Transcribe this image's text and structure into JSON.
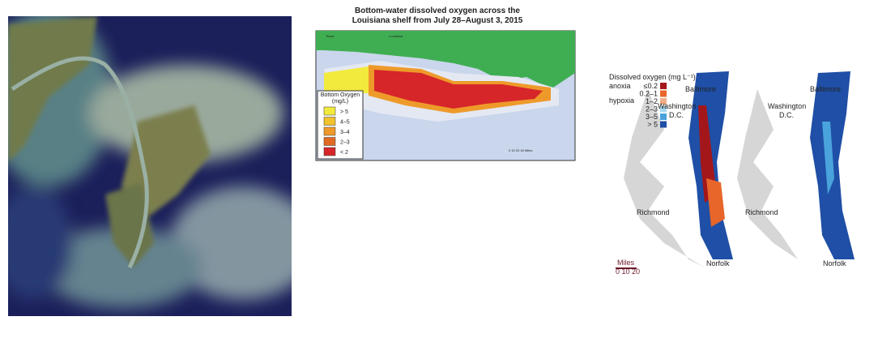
{
  "louisiana_map": {
    "title_lines": [
      "Bottom-water dissolved oxygen across the",
      "Louisiana shelf from July 28–August 3, 2015"
    ],
    "place_labels": [
      "Texas",
      "Louisiana"
    ],
    "scale_label": "0  10  20       40 Miles",
    "legend": {
      "title_lines": [
        "Bottom Oxygen",
        "(mg/L)"
      ],
      "items": [
        {
          "label": "> 5",
          "color": "#f2ea3c"
        },
        {
          "label": "4–5",
          "color": "#f2c12e"
        },
        {
          "label": "3–4",
          "color": "#ee9a2a"
        },
        {
          "label": "2–3",
          "color": "#e06a22"
        },
        {
          "label": "< 2",
          "color": "#d6262a"
        }
      ]
    }
  },
  "chesapeake_map": {
    "legend": {
      "title": "Dissolved oxygen (mg L⁻¹)",
      "anoxia": "anoxia",
      "hypoxia": "hypoxia",
      "items": [
        {
          "label": "≤0.2",
          "color": "#a3171b"
        },
        {
          "label": "0.2–1",
          "color": "#e8662a"
        },
        {
          "label": "1–2",
          "color": "#f3ae86"
        },
        {
          "label": "2–3",
          "color": "#a9d9ef"
        },
        {
          "label": "3–5",
          "color": "#4aa3dc"
        },
        {
          "label": "> 5",
          "color": "#1f4fa6"
        }
      ]
    },
    "cities": {
      "baltimore": "Baltimore",
      "washington": [
        "Washington",
        "D.C."
      ],
      "richmond": "Richmond",
      "norfolk": "Norfolk"
    },
    "scale": {
      "label": "Miles",
      "ticks": "0 10 20"
    }
  }
}
